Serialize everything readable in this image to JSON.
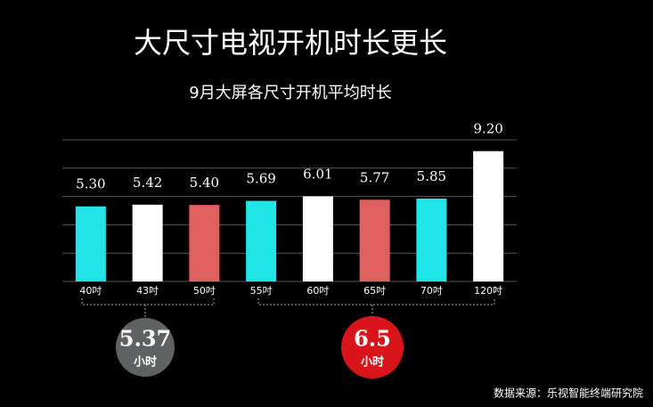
{
  "chart_data": {
    "type": "bar",
    "title": "大尺寸电视开机时长更长",
    "subtitle": "9月大屏各尺寸开机平均时长",
    "categories": [
      "40吋",
      "43吋",
      "50吋",
      "55吋",
      "60吋",
      "65吋",
      "70吋",
      "120吋"
    ],
    "values": [
      5.3,
      5.42,
      5.4,
      5.69,
      6.01,
      5.77,
      5.85,
      9.2
    ],
    "value_labels": [
      "5.30",
      "5.42",
      "5.40",
      "5.69",
      "6.01",
      "5.77",
      "5.85",
      "9.20"
    ],
    "colors": [
      "#22e5ea",
      "#ffffff",
      "#e06060",
      "#22e5ea",
      "#ffffff",
      "#e06060",
      "#22e5ea",
      "#ffffff"
    ],
    "ylim": [
      0,
      10
    ],
    "yticks": [
      0,
      2,
      4,
      6,
      8,
      10
    ],
    "grid": true,
    "annotations": [
      {
        "value": 5.37,
        "unit": "小时",
        "color": "#5f6262"
      },
      {
        "value": 6.5,
        "unit": "小时",
        "color": "#d9141b"
      }
    ],
    "source": "数据来源：乐视智能终端研究院"
  }
}
